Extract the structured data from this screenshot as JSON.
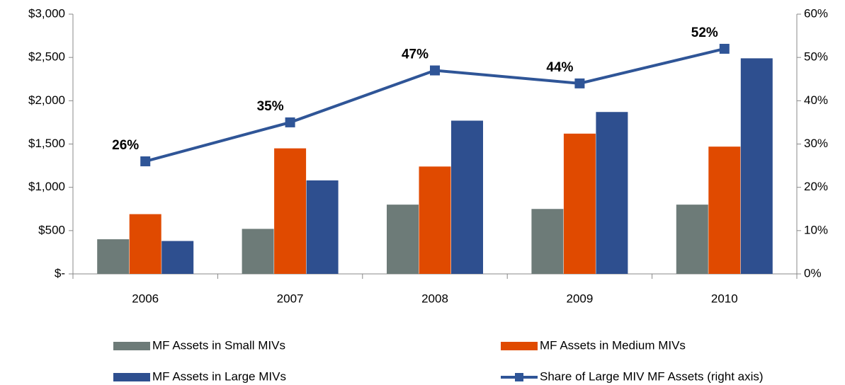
{
  "chart_data": {
    "type": "bar",
    "categories": [
      "2006",
      "2007",
      "2008",
      "2009",
      "2010"
    ],
    "series": [
      {
        "name": "MF Assets in Small MIVs",
        "color": "#6d7b78",
        "values": [
          400,
          520,
          800,
          750,
          800
        ]
      },
      {
        "name": "MF Assets in Medium MIVs",
        "color": "#e04a00",
        "values": [
          690,
          1450,
          1240,
          1620,
          1470
        ]
      },
      {
        "name": "MF Assets in Large MIVs",
        "color": "#2e4f8f",
        "values": [
          380,
          1080,
          1770,
          1870,
          2490
        ]
      },
      {
        "name": "Share of Large MIV MF Assets (right axis)",
        "type": "line",
        "axis": "y2",
        "color": "#2f5597",
        "values": [
          26,
          35,
          47,
          44,
          52
        ],
        "value_labels": [
          "26%",
          "35%",
          "47%",
          "44%",
          "52%"
        ]
      }
    ],
    "ylim": [
      0,
      3000
    ],
    "yticks": [
      {
        "value": 0,
        "label": "$-"
      },
      {
        "value": 500,
        "label": "$500"
      },
      {
        "value": 1000,
        "label": "$1,000"
      },
      {
        "value": 1500,
        "label": "$1,500"
      },
      {
        "value": 2000,
        "label": "$2,000"
      },
      {
        "value": 2500,
        "label": "$2,500"
      },
      {
        "value": 3000,
        "label": "$3,000"
      }
    ],
    "y2lim": [
      0,
      60
    ],
    "y2ticks": [
      {
        "value": 0,
        "label": "0%"
      },
      {
        "value": 10,
        "label": "10%"
      },
      {
        "value": 20,
        "label": "20%"
      },
      {
        "value": 30,
        "label": "30%"
      },
      {
        "value": 40,
        "label": "40%"
      },
      {
        "value": 50,
        "label": "50%"
      },
      {
        "value": 60,
        "label": "60%"
      }
    ],
    "grid": false,
    "legend": "bottom"
  }
}
